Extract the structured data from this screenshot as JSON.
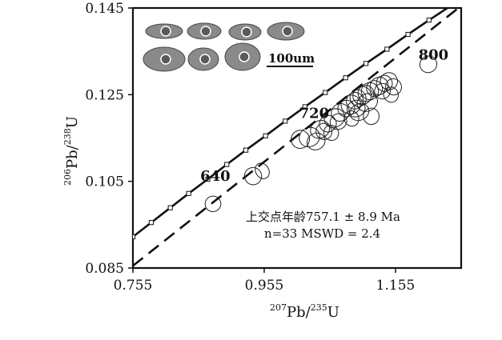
{
  "chart_data": {
    "type": "scatter",
    "title": "",
    "xlabel": {
      "pre_sup": "207",
      "base": "Pb/",
      "mid_sup": "235",
      "tail": "U"
    },
    "ylabel": {
      "pre_sup": "206",
      "base": "Pb/",
      "mid_sup": "238",
      "tail": "U"
    },
    "xlim": [
      0.755,
      1.255
    ],
    "ylim": [
      0.085,
      0.145
    ],
    "x_ticks": [
      {
        "value": 0.755,
        "label": "0.755"
      },
      {
        "value": 0.955,
        "label": "0.955"
      },
      {
        "value": 1.155,
        "label": "1.155"
      }
    ],
    "y_ticks": [
      {
        "value": 0.085,
        "label": "0.085"
      },
      {
        "value": 0.105,
        "label": "0.105"
      },
      {
        "value": 0.125,
        "label": "0.125"
      },
      {
        "value": 0.145,
        "label": "0.145"
      }
    ],
    "concordia": {
      "age_labels": [
        {
          "age": "640",
          "x": 0.882,
          "y": 0.1044
        },
        {
          "age": "720",
          "x": 1.035,
          "y": 0.1181
        },
        {
          "age": "800",
          "x": 1.207,
          "y": 0.1318
        }
      ],
      "marker_x": [
        0.755,
        0.783,
        0.812,
        0.84,
        0.869,
        0.898,
        0.927,
        0.957,
        0.987,
        1.017,
        1.048,
        1.079,
        1.11,
        1.142,
        1.174,
        1.206,
        1.239
      ],
      "marker_y": [
        0.0922,
        0.0955,
        0.0989,
        0.1022,
        0.1055,
        0.1089,
        0.1122,
        0.1155,
        0.1189,
        0.1222,
        0.1255,
        0.1289,
        0.1322,
        0.1355,
        0.1389,
        0.1422,
        0.1455
      ]
    },
    "discordia": {
      "x": [
        0.755,
        1.255
      ],
      "y": [
        0.0855,
        0.1455
      ]
    },
    "ellipses": [
      {
        "x": 0.877,
        "y": 0.0998,
        "rx": 0.012,
        "ry": 0.0012,
        "angle": -30
      },
      {
        "x": 0.938,
        "y": 0.1062,
        "rx": 0.013,
        "ry": 0.0014,
        "angle": -30
      },
      {
        "x": 0.952,
        "y": 0.1074,
        "rx": 0.01,
        "ry": 0.0013,
        "angle": -32
      },
      {
        "x": 1.01,
        "y": 0.1147,
        "rx": 0.014,
        "ry": 0.0015,
        "angle": -30
      },
      {
        "x": 1.024,
        "y": 0.1152,
        "rx": 0.016,
        "ry": 0.0016,
        "angle": -28
      },
      {
        "x": 1.04,
        "y": 0.117,
        "rx": 0.015,
        "ry": 0.0014,
        "angle": -30
      },
      {
        "x": 1.052,
        "y": 0.1183,
        "rx": 0.013,
        "ry": 0.0013,
        "angle": -32
      },
      {
        "x": 1.062,
        "y": 0.1196,
        "rx": 0.016,
        "ry": 0.0015,
        "angle": -28
      },
      {
        "x": 1.071,
        "y": 0.1209,
        "rx": 0.014,
        "ry": 0.0014,
        "angle": -30
      },
      {
        "x": 1.08,
        "y": 0.1218,
        "rx": 0.013,
        "ry": 0.0013,
        "angle": -30
      },
      {
        "x": 1.087,
        "y": 0.1227,
        "rx": 0.015,
        "ry": 0.0016,
        "angle": -27
      },
      {
        "x": 1.093,
        "y": 0.1236,
        "rx": 0.013,
        "ry": 0.0013,
        "angle": -31
      },
      {
        "x": 1.098,
        "y": 0.1242,
        "rx": 0.012,
        "ry": 0.0014,
        "angle": -30
      },
      {
        "x": 1.104,
        "y": 0.1248,
        "rx": 0.014,
        "ry": 0.0015,
        "angle": -29
      },
      {
        "x": 1.11,
        "y": 0.1253,
        "rx": 0.012,
        "ry": 0.0013,
        "angle": -30
      },
      {
        "x": 1.116,
        "y": 0.1258,
        "rx": 0.013,
        "ry": 0.0014,
        "angle": -31
      },
      {
        "x": 1.123,
        "y": 0.1264,
        "rx": 0.012,
        "ry": 0.0013,
        "angle": -30
      },
      {
        "x": 1.13,
        "y": 0.127,
        "rx": 0.014,
        "ry": 0.0014,
        "angle": -29
      },
      {
        "x": 1.138,
        "y": 0.1276,
        "rx": 0.012,
        "ry": 0.0013,
        "angle": -30
      },
      {
        "x": 1.145,
        "y": 0.1281,
        "rx": 0.013,
        "ry": 0.0014,
        "angle": -30
      },
      {
        "x": 1.152,
        "y": 0.1268,
        "rx": 0.012,
        "ry": 0.0013,
        "angle": -28
      },
      {
        "x": 1.112,
        "y": 0.1232,
        "rx": 0.016,
        "ry": 0.0014,
        "angle": -25
      },
      {
        "x": 1.095,
        "y": 0.1218,
        "rx": 0.014,
        "ry": 0.0013,
        "angle": -28
      },
      {
        "x": 1.068,
        "y": 0.1188,
        "rx": 0.013,
        "ry": 0.0012,
        "angle": -30
      },
      {
        "x": 1.046,
        "y": 0.1165,
        "rx": 0.012,
        "ry": 0.0013,
        "angle": -30
      },
      {
        "x": 1.034,
        "y": 0.1142,
        "rx": 0.014,
        "ry": 0.0013,
        "angle": -30
      },
      {
        "x": 1.057,
        "y": 0.1162,
        "rx": 0.011,
        "ry": 0.0012,
        "angle": -30
      },
      {
        "x": 1.1,
        "y": 0.121,
        "rx": 0.015,
        "ry": 0.0013,
        "angle": -26
      },
      {
        "x": 1.135,
        "y": 0.1258,
        "rx": 0.012,
        "ry": 0.0012,
        "angle": -30
      },
      {
        "x": 1.148,
        "y": 0.125,
        "rx": 0.011,
        "ry": 0.0012,
        "angle": -28
      },
      {
        "x": 1.118,
        "y": 0.12,
        "rx": 0.012,
        "ry": 0.0013,
        "angle": 0
      },
      {
        "x": 1.088,
        "y": 0.1195,
        "rx": 0.011,
        "ry": 0.0012,
        "angle": -20
      },
      {
        "x": 1.205,
        "y": 0.132,
        "rx": 0.013,
        "ry": 0.0013,
        "angle": -30
      }
    ],
    "annotations": [
      "上交点年龄757.1 ± 8.9 Ma",
      "n=33   MSWD = 2.4"
    ],
    "inset_scale_label": "100um"
  }
}
